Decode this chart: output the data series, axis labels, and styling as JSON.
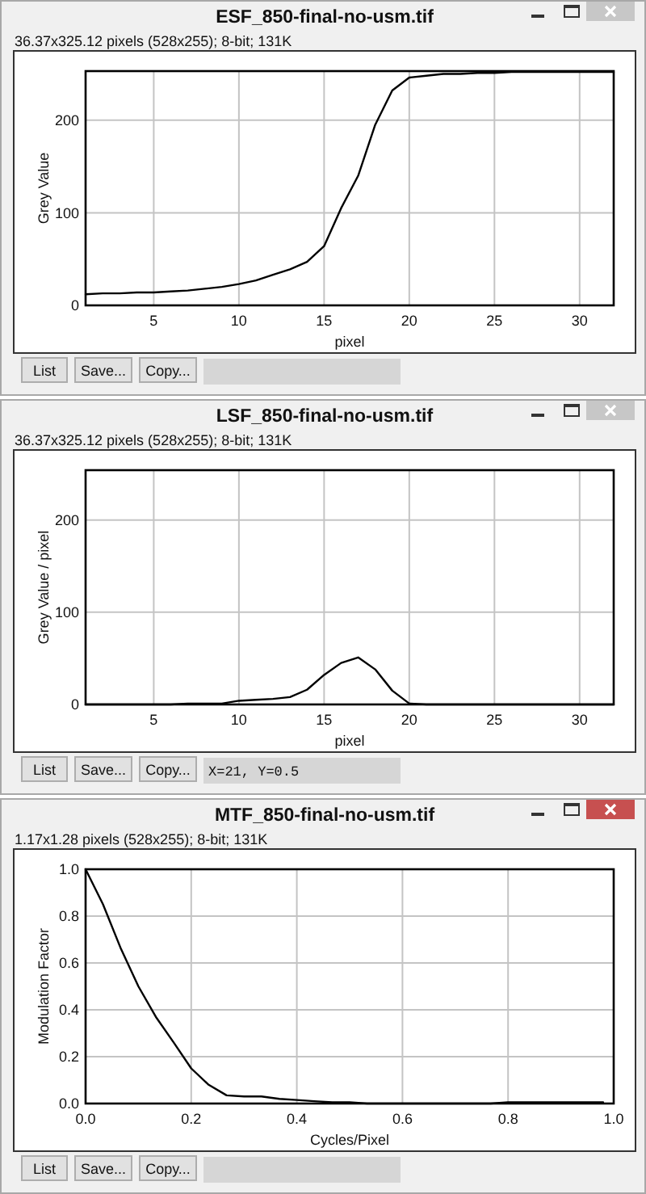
{
  "chart_data": [
    {
      "type": "line",
      "title": "ESF_850-final-no-usm.tif",
      "subtitle": "36.37x325.12 pixels (528x255); 8-bit; 131K",
      "xlabel": "pixel",
      "ylabel": "Grey Value",
      "x": [
        1,
        2,
        3,
        4,
        5,
        6,
        7,
        8,
        9,
        10,
        11,
        12,
        13,
        14,
        15,
        16,
        17,
        18,
        19,
        20,
        21,
        22,
        23,
        24,
        25,
        26,
        27,
        28,
        29,
        30,
        31,
        32
      ],
      "values": [
        12,
        13,
        13,
        14,
        14,
        15,
        16,
        18,
        20,
        23,
        27,
        33,
        39,
        47,
        64,
        105,
        140,
        195,
        232,
        246,
        248,
        250,
        250,
        251,
        251,
        252,
        252,
        252,
        252,
        252,
        252,
        252
      ],
      "color": "#000000",
      "xlim": [
        1,
        32
      ],
      "ylim": [
        0,
        253
      ],
      "xticks": [
        5,
        10,
        15,
        20,
        25,
        30
      ],
      "yticks": [
        0,
        100,
        200
      ],
      "grid": true,
      "annotations": [
        "List",
        "Save...",
        "Copy..."
      ]
    },
    {
      "type": "line",
      "title": "LSF_850-final-no-usm.tif",
      "subtitle": "36.37x325.12 pixels (528x255); 8-bit; 131K",
      "xlabel": "pixel",
      "ylabel": "Grey Value / pixel",
      "x": [
        1,
        2,
        3,
        4,
        5,
        6,
        7,
        8,
        9,
        10,
        11,
        12,
        13,
        14,
        15,
        16,
        17,
        18,
        19,
        20,
        21,
        22,
        23,
        24,
        25,
        26,
        27,
        28,
        29,
        30,
        31,
        32
      ],
      "values": [
        0,
        0,
        0,
        0,
        0,
        0,
        1,
        1,
        1,
        4,
        5,
        6,
        8,
        16,
        32,
        45,
        51,
        38,
        15,
        1,
        0,
        0,
        0,
        0,
        0,
        0,
        0,
        0,
        0,
        0,
        0,
        0
      ],
      "color": "#000000",
      "xlim": [
        1,
        32
      ],
      "ylim": [
        0,
        254
      ],
      "xticks": [
        5,
        10,
        15,
        20,
        25,
        30
      ],
      "yticks": [
        0,
        100,
        200
      ],
      "grid": true,
      "annotations": [
        "List",
        "Save...",
        "Copy...",
        "X=21, Y=0.5"
      ]
    },
    {
      "type": "line",
      "title": "MTF_850-final-no-usm.tif",
      "subtitle": "1.17x1.28 pixels (528x255); 8-bit; 131K",
      "xlabel": "Cycles/Pixel",
      "ylabel": "Modulation Factor",
      "x": [
        0,
        0.033,
        0.067,
        0.1,
        0.133,
        0.167,
        0.2,
        0.233,
        0.267,
        0.3,
        0.333,
        0.367,
        0.4,
        0.433,
        0.467,
        0.5,
        0.533,
        0.567,
        0.6,
        0.633,
        0.667,
        0.7,
        0.733,
        0.767,
        0.8,
        0.833,
        0.867,
        0.9,
        0.933,
        0.967,
        0.98
      ],
      "values": [
        1.0,
        0.85,
        0.66,
        0.5,
        0.37,
        0.26,
        0.15,
        0.08,
        0.035,
        0.03,
        0.03,
        0.02,
        0.015,
        0.01,
        0.005,
        0.005,
        0,
        0,
        0,
        0,
        0,
        0,
        0,
        0,
        0.005,
        0.005,
        0.005,
        0.005,
        0.005,
        0.005,
        0.005
      ],
      "color": "#000000",
      "xlim": [
        0,
        1
      ],
      "ylim": [
        0,
        1
      ],
      "xticks": [
        {
          "value": 0,
          "label": "0.0"
        },
        0.2,
        0.4,
        0.6,
        0.8,
        {
          "value": 1,
          "label": "1.0"
        }
      ],
      "yticks": [
        {
          "value": 0,
          "label": "0.0"
        },
        0.2,
        0.4,
        0.6,
        0.8,
        {
          "value": 1,
          "label": "1.0"
        }
      ],
      "grid": true,
      "annotations": [
        "List",
        "Save...",
        "Copy..."
      ]
    }
  ]
}
